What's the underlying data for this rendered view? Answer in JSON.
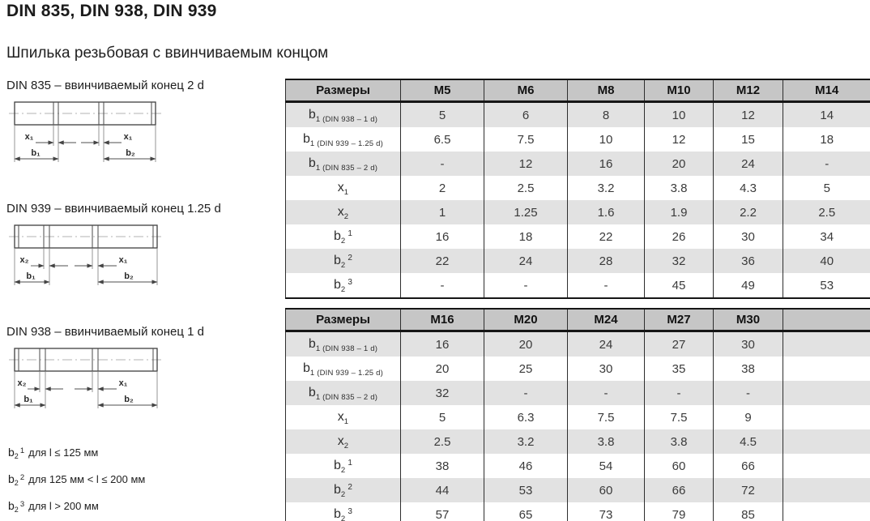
{
  "page": {
    "title": "DIN 835, DIN 938, DIN 939",
    "subtitle": "Шпилька резьбовая с ввинчиваемым концом"
  },
  "diagrams": [
    {
      "caption": "DIN 835 – ввинчиваемый конец 2 d",
      "x_left": "x₁",
      "x_right": "x₁",
      "b_left": "b₁",
      "b_right": "b₂"
    },
    {
      "caption": "DIN 939 – ввинчиваемый конец 1.25 d",
      "x_left": "x₂",
      "x_right": "x₁",
      "b_left": "b₁",
      "b_right": "b₂"
    },
    {
      "caption": "DIN 938 – ввинчиваемый конец 1 d",
      "x_left": "x₂",
      "x_right": "x₁",
      "b_left": "b₁",
      "b_right": "b₂"
    }
  ],
  "footnotes": [
    {
      "base": "b",
      "sub": "2",
      "sup": "1",
      "text": "для l ≤ 125 мм"
    },
    {
      "base": "b",
      "sub": "2",
      "sup": "2",
      "text": "для 125 мм < l ≤ 200 мм"
    },
    {
      "base": "b",
      "sub": "2",
      "sup": "3",
      "text": "для l > 200 мм"
    }
  ],
  "colors": {
    "header_bg": "#c6c6c6",
    "row_alt_bg": "#e2e2e2",
    "border": "#161616",
    "text": "#3a3a3a"
  },
  "tables": [
    {
      "header": [
        "Размеры",
        "M5",
        "M6",
        "M8",
        "M10",
        "M12",
        "M14"
      ],
      "rows": [
        {
          "label": {
            "base": "b",
            "sub": "1 (DIN 938 – 1 d)"
          },
          "values": [
            "5",
            "6",
            "8",
            "10",
            "12",
            "14"
          ]
        },
        {
          "label": {
            "base": "b",
            "sub": "1 (DIN 939 – 1.25 d)"
          },
          "values": [
            "6.5",
            "7.5",
            "10",
            "12",
            "15",
            "18"
          ]
        },
        {
          "label": {
            "base": "b",
            "sub": "1 (DIN 835 – 2 d)"
          },
          "values": [
            "-",
            "12",
            "16",
            "20",
            "24",
            "-"
          ]
        },
        {
          "label": {
            "base": "x",
            "sub": "1"
          },
          "values": [
            "2",
            "2.5",
            "3.2",
            "3.8",
            "4.3",
            "5"
          ]
        },
        {
          "label": {
            "base": "x",
            "sub": "2"
          },
          "values": [
            "1",
            "1.25",
            "1.6",
            "1.9",
            "2.2",
            "2.5"
          ]
        },
        {
          "label": {
            "base": "b",
            "sub": "2",
            "sup": "1"
          },
          "values": [
            "16",
            "18",
            "22",
            "26",
            "30",
            "34"
          ]
        },
        {
          "label": {
            "base": "b",
            "sub": "2",
            "sup": "2"
          },
          "values": [
            "22",
            "24",
            "28",
            "32",
            "36",
            "40"
          ]
        },
        {
          "label": {
            "base": "b",
            "sub": "2",
            "sup": "3"
          },
          "values": [
            "-",
            "-",
            "-",
            "45",
            "49",
            "53"
          ]
        }
      ]
    },
    {
      "header": [
        "Размеры",
        "M16",
        "M20",
        "M24",
        "M27",
        "M30",
        ""
      ],
      "rows": [
        {
          "label": {
            "base": "b",
            "sub": "1 (DIN 938 – 1 d)"
          },
          "values": [
            "16",
            "20",
            "24",
            "27",
            "30",
            ""
          ]
        },
        {
          "label": {
            "base": "b",
            "sub": "1 (DIN 939 – 1.25 d)"
          },
          "values": [
            "20",
            "25",
            "30",
            "35",
            "38",
            ""
          ]
        },
        {
          "label": {
            "base": "b",
            "sub": "1 (DIN 835 – 2 d)"
          },
          "values": [
            "32",
            "-",
            "-",
            "-",
            "-",
            ""
          ]
        },
        {
          "label": {
            "base": "x",
            "sub": "1"
          },
          "values": [
            "5",
            "6.3",
            "7.5",
            "7.5",
            "9",
            ""
          ]
        },
        {
          "label": {
            "base": "x",
            "sub": "2"
          },
          "values": [
            "2.5",
            "3.2",
            "3.8",
            "3.8",
            "4.5",
            ""
          ]
        },
        {
          "label": {
            "base": "b",
            "sub": "2",
            "sup": "1"
          },
          "values": [
            "38",
            "46",
            "54",
            "60",
            "66",
            ""
          ]
        },
        {
          "label": {
            "base": "b",
            "sub": "2",
            "sup": "2"
          },
          "values": [
            "44",
            "53",
            "60",
            "66",
            "72",
            ""
          ]
        },
        {
          "label": {
            "base": "b",
            "sub": "2",
            "sup": "3"
          },
          "values": [
            "57",
            "65",
            "73",
            "79",
            "85",
            ""
          ]
        }
      ]
    }
  ]
}
